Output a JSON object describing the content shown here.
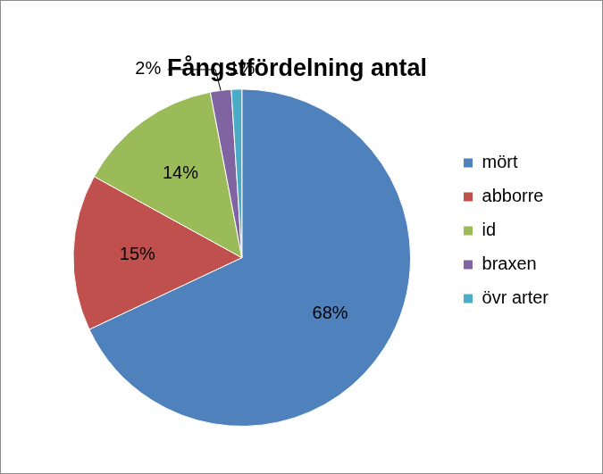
{
  "chart_data": {
    "type": "pie",
    "title": "Fångstfördelning antal",
    "categories": [
      "mört",
      "abborre",
      "id",
      "braxen",
      "övr arter"
    ],
    "values": [
      68,
      15,
      14,
      2,
      1
    ],
    "value_labels": [
      "68%",
      "15%",
      "14%",
      "2%",
      "1%"
    ],
    "colors": [
      "#4f81bd",
      "#c0504d",
      "#9bbb59",
      "#8064a2",
      "#4bacc6"
    ],
    "data_labels": true,
    "legend": "right"
  }
}
